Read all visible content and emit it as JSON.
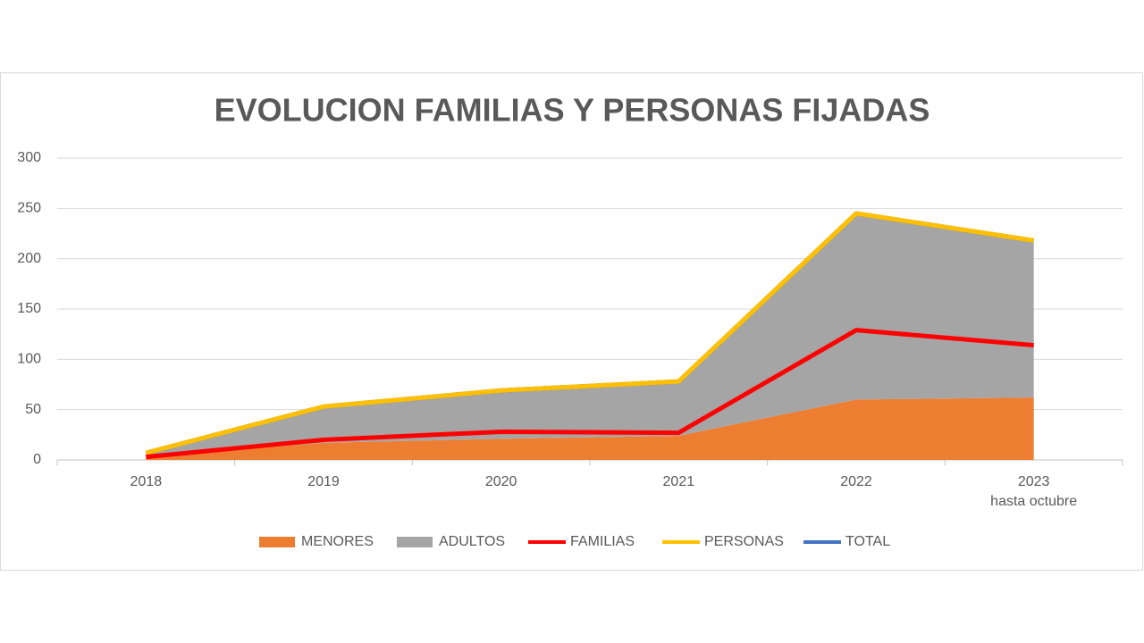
{
  "chart_data": {
    "type": "stacked_area_line",
    "title": "EVOLUCION FAMILIAS Y PERSONAS FIJADAS",
    "categories": [
      "2018",
      "2019",
      "2020",
      "2021",
      "2022",
      "2023\nhasta octubre"
    ],
    "series": [
      {
        "name": "MENORES",
        "kind": "area",
        "color": "#ed7d31",
        "values": [
          3,
          17,
          21,
          24,
          60,
          62
        ]
      },
      {
        "name": "ADULTOS",
        "kind": "area",
        "color": "#a5a5a5",
        "values": [
          4,
          36,
          48,
          54,
          185,
          156
        ]
      },
      {
        "name": "FAMILIAS",
        "kind": "line",
        "color": "#ff0000",
        "values": [
          3,
          20,
          28,
          27,
          129,
          114
        ]
      },
      {
        "name": "PERSONAS",
        "kind": "line",
        "color": "#ffc000",
        "values": [
          7,
          53,
          69,
          78,
          245,
          218
        ]
      },
      {
        "name": "TOTAL",
        "kind": "line",
        "color": "#4472c4",
        "values": [
          7,
          53,
          69,
          78,
          245,
          218
        ]
      }
    ],
    "ylim": [
      0,
      300
    ],
    "yticks": [
      0,
      50,
      100,
      150,
      200,
      250,
      300
    ],
    "grid": true,
    "legend": "bottom"
  }
}
